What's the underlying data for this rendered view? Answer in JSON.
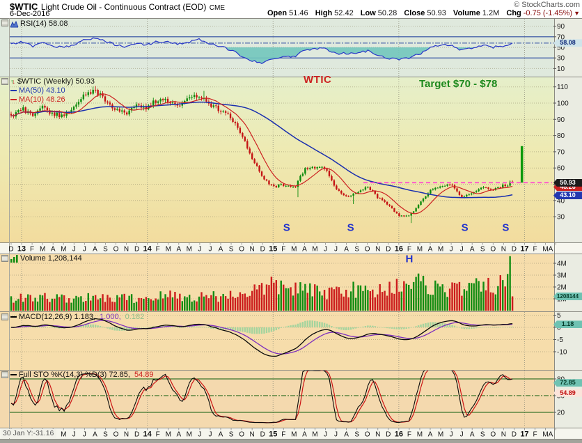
{
  "header": {
    "symbol": "$WTIC",
    "title": "Light Crude Oil - Continuous Contract (EOD)",
    "exchange": "CME",
    "date": "6-Dec-2016",
    "copyright": "© StockCharts.com",
    "quote": {
      "items": [
        {
          "label": "Open",
          "value": "51.46"
        },
        {
          "label": "High",
          "value": "52.42"
        },
        {
          "label": "Low",
          "value": "50.28"
        },
        {
          "label": "Close",
          "value": "50.93"
        },
        {
          "label": "Volume",
          "value": "1.2M"
        }
      ],
      "chg_label": "Chg",
      "chg_value": "-0.75 (-1.45%)",
      "chg_arrow": "▼"
    }
  },
  "icons": {
    "up_arrow": "↑",
    "down_arrow": "↓"
  },
  "panels": {
    "rsi": {
      "legend": "RSI(14) 58.08",
      "bubble": "58.08"
    },
    "price": {
      "legend": "$WTIC (Weekly) 50.93",
      "ma50": "MA(50) 43.10",
      "ma10": "MA(10) 48.26",
      "bubble_close": "50.93",
      "bubble_ma10": "48.26",
      "bubble_ma50": "43.10",
      "wtic_label": "WTIC",
      "target_label": "Target $70 - $78"
    },
    "volume": {
      "legend": "Volume 1,208,144",
      "bubble": "1208144"
    },
    "macd": {
      "label": "MACD(12,26,9) 1.183,",
      "signal": "1.000,",
      "hist": "0.182",
      "bubble": "1.18"
    },
    "sto": {
      "label": "Full STO %K(14,3) %D(3) 72.85,",
      "d_value": "54.89",
      "bubble_k": "72.85",
      "bubble_d": "54.89"
    }
  },
  "footer": {
    "readout": "30 Jan Y:-31.16"
  },
  "chart_data": {
    "type": "candlestick",
    "frequency": "weekly",
    "x_range": "Dec 2012 - Apr 2017",
    "x_axis_labels": [
      "D",
      "13",
      "F",
      "M",
      "A",
      "M",
      "J",
      "J",
      "A",
      "S",
      "O",
      "N",
      "D",
      "14",
      "F",
      "M",
      "A",
      "M",
      "J",
      "J",
      "A",
      "S",
      "O",
      "N",
      "D",
      "15",
      "F",
      "M",
      "A",
      "M",
      "J",
      "J",
      "A",
      "S",
      "O",
      "N",
      "D",
      "16",
      "F",
      "M",
      "A",
      "M",
      "J",
      "J",
      "A",
      "S",
      "O",
      "N",
      "D",
      "17",
      "F",
      "M",
      "A"
    ],
    "axes": {
      "price": [
        110,
        100,
        90,
        80,
        70,
        60,
        50,
        40,
        30
      ],
      "rsi": [
        90,
        70,
        50,
        30,
        10
      ],
      "volume_values": [
        4,
        3,
        2,
        1
      ],
      "volume_labels": [
        "4M",
        "3M",
        "2M",
        "1M"
      ],
      "macd": [
        5,
        0,
        -5,
        -10
      ],
      "sto": [
        80,
        50,
        20
      ]
    },
    "price": {
      "monthly_close": [
        91.8,
        97.5,
        92.0,
        97.2,
        93.5,
        91.9,
        96.6,
        105.0,
        107.7,
        102.3,
        96.3,
        92.7,
        98.4,
        97.5,
        102.6,
        101.6,
        99.7,
        102.7,
        105.4,
        98.2,
        95.9,
        91.2,
        80.5,
        66.2,
        53.3,
        48.2,
        49.8,
        47.6,
        59.6,
        60.3,
        59.5,
        47.1,
        42.0,
        45.1,
        49.0,
        41.7,
        37.0,
        30.5,
        30.8,
        38.3,
        45.9,
        49.6,
        49.3,
        41.6,
        44.7,
        48.2,
        46.9,
        49.4,
        50.93
      ],
      "last_close": 50.93,
      "ma50_last": 43.1,
      "ma10_last": 48.26,
      "resistance": 51.0,
      "target_spike": {
        "month": 48.75,
        "from": 51.0,
        "to": 73.5
      },
      "low_overrides": {
        "119": 42.0,
        "142": 37.8,
        "166": 26.1
      },
      "high_overrides": {
        "35": 110.5,
        "80": 107.5
      }
    },
    "rsi": {
      "monthly": [
        55,
        60,
        52,
        58,
        53,
        50,
        55,
        64,
        68,
        61,
        55,
        51,
        57,
        55,
        61,
        60,
        57,
        60,
        65,
        56,
        51,
        45,
        34,
        25,
        21,
        27,
        33,
        32,
        44,
        48,
        47,
        37,
        39,
        38,
        44,
        35,
        30,
        27,
        30,
        38,
        49,
        55,
        53,
        44,
        48,
        54,
        50,
        53,
        58
      ],
      "last": 58.08,
      "overbought": 70,
      "oversold": 30
    },
    "volume": {
      "monthly_M": [
        1.0,
        1.1,
        1.0,
        1.1,
        1.2,
        1.0,
        1.1,
        1.1,
        1.0,
        1.1,
        1.0,
        1.1,
        1.0,
        1.1,
        1.2,
        1.3,
        1.2,
        1.1,
        1.2,
        1.3,
        1.2,
        1.3,
        1.5,
        1.7,
        1.9,
        2.1,
        2.0,
        1.9,
        1.8,
        1.6,
        1.5,
        1.7,
        1.9,
        1.7,
        1.6,
        1.7,
        1.9,
        2.3,
        2.5,
        2.3,
        2.1,
        1.9,
        1.8,
        1.9,
        2.0,
        1.9,
        2.1,
        2.4,
        3.2
      ],
      "last_M": 1.208,
      "last": 1208144
    },
    "macd": {
      "params": [
        12,
        26,
        9
      ],
      "last": [
        1.183,
        1.0,
        0.182
      ]
    },
    "sto": {
      "params": "%K(14,3) %D(3)",
      "last": [
        72.85,
        54.89
      ],
      "upper": 80,
      "mid": 50,
      "lower": 20
    },
    "annotations": {
      "s": {
        "label": "S",
        "months": [
          26.3,
          32.4,
          43.3,
          47.2
        ]
      },
      "h": {
        "label": "H",
        "month": 38.0
      }
    }
  }
}
